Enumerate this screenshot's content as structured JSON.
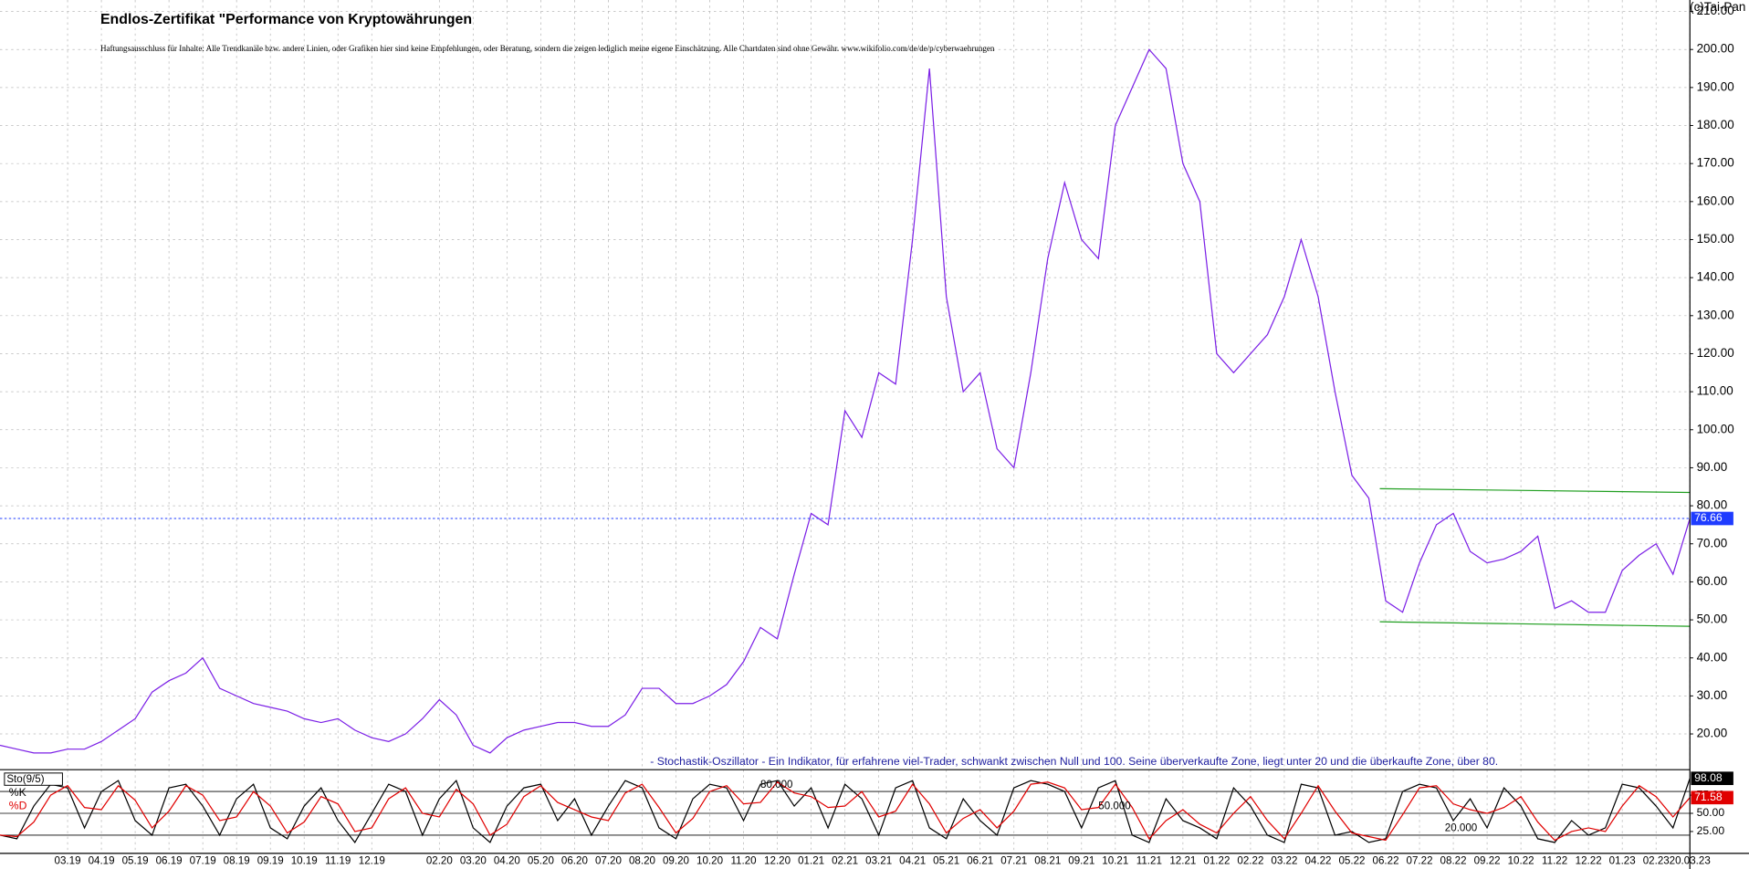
{
  "chart_data": [
    {
      "type": "line",
      "title": "Endlos-Zertifikat \"Performance von Kryptowährungen",
      "subtitle": "Haftungsausschluss für Inhalte: Alle Trendkanäle bzw. andere Linien, oder Grafiken hier sind keine Empfehlungen, oder Beratung, sondern die zeigen lediglich meine eigene Einschätzung. Alle Chartdaten sind ohne Gewähr. www.wikifolio.com/de/de/p/cyberwaehrungen",
      "source": "(c)Tai-Pan",
      "categories": [
        null,
        null,
        null,
        null,
        "03.19",
        null,
        "04.19",
        null,
        "05.19",
        null,
        "06.19",
        null,
        "07.19",
        null,
        "08.19",
        null,
        "09.19",
        null,
        "10.19",
        null,
        "11.19",
        null,
        "12.19",
        null,
        null,
        null,
        "02.20",
        null,
        "03.20",
        null,
        "04.20",
        null,
        "05.20",
        null,
        "06.20",
        null,
        "07.20",
        null,
        "08.20",
        null,
        "09.20",
        null,
        "10.20",
        null,
        "11.20",
        null,
        "12.20",
        null,
        "01.21",
        null,
        "02.21",
        null,
        "03.21",
        null,
        "04.21",
        null,
        "05.21",
        null,
        "06.21",
        null,
        "07.21",
        null,
        "08.21",
        null,
        "09.21",
        null,
        "10.21",
        null,
        "11.21",
        null,
        "12.21",
        null,
        "01.22",
        null,
        "02.22",
        null,
        "03.22",
        null,
        "04.22",
        null,
        "05.22",
        null,
        "06.22",
        null,
        "07.22",
        null,
        "08.22",
        null,
        "09.22",
        null,
        "10.22",
        null,
        "11.22",
        null,
        "12.22",
        null,
        "01.23",
        null,
        "02.23",
        null,
        "20.03.23"
      ],
      "values": [
        17,
        16,
        15,
        15,
        16,
        16,
        18,
        21,
        24,
        31,
        34,
        36,
        40,
        32,
        30,
        28,
        27,
        26,
        24,
        23,
        24,
        21,
        19,
        18,
        20,
        24,
        29,
        25,
        17,
        15,
        19,
        21,
        22,
        23,
        23,
        22,
        22,
        25,
        32,
        32,
        28,
        28,
        30,
        33,
        39,
        48,
        45,
        62,
        78,
        75,
        105,
        98,
        115,
        112,
        150,
        195,
        135,
        110,
        115,
        95,
        90,
        115,
        145,
        165,
        150,
        145,
        180,
        190,
        200,
        195,
        170,
        160,
        120,
        115,
        120,
        125,
        135,
        150,
        135,
        110,
        88,
        82,
        55,
        52,
        65,
        75,
        78,
        68,
        65,
        66,
        68,
        72,
        53,
        55,
        52,
        52,
        63,
        67,
        70,
        62,
        76.66
      ],
      "color": "#7b1fe6",
      "ylim": [
        15,
        213
      ],
      "yticks": [
        {
          "value": 20,
          "label": "20.00"
        },
        {
          "value": 30,
          "label": "30.00"
        },
        {
          "value": 40,
          "label": "40.00"
        },
        {
          "value": 50,
          "label": "50.00"
        },
        {
          "value": 60,
          "label": "60.00"
        },
        {
          "value": 70,
          "label": "70.00"
        },
        {
          "value": 80,
          "label": "80.00"
        },
        {
          "value": 90,
          "label": "90.00"
        },
        {
          "value": 100,
          "label": "100.00"
        },
        {
          "value": 110,
          "label": "110.00"
        },
        {
          "value": 120,
          "label": "120.00"
        },
        {
          "value": 130,
          "label": "130.00"
        },
        {
          "value": 140,
          "label": "140.00"
        },
        {
          "value": 150,
          "label": "150.00"
        },
        {
          "value": 160,
          "label": "160.00"
        },
        {
          "value": 170,
          "label": "170.00"
        },
        {
          "value": 180,
          "label": "180.00"
        },
        {
          "value": 190,
          "label": "190.00"
        },
        {
          "value": 200,
          "label": "200.00"
        },
        {
          "value": 210,
          "label": "210.00"
        }
      ],
      "grid": true,
      "last_value_color": "#1f3cff",
      "trend_lines": [
        {
          "color": "#1f9e1f",
          "values": [
            84.5,
            83.5
          ]
        },
        {
          "color": "#1f9e1f",
          "values": [
            49.5,
            48.3
          ]
        }
      ]
    },
    {
      "type": "stochastic",
      "title": "Sto(9/5)",
      "subtitle": "- Stochastik-Oszillator - Ein Indikator, für erfahrene viel-Trader, schwankt zwischen Null und 100. Seine überverkaufte Zone, liegt unter 20 und die überkaufte Zone, über 80.",
      "series": [
        {
          "name": "%K",
          "color": "#000000",
          "values": [
            20,
            15,
            60,
            90,
            85,
            30,
            80,
            95,
            40,
            20,
            85,
            90,
            60,
            20,
            70,
            90,
            30,
            15,
            60,
            85,
            40,
            10,
            50,
            90,
            80,
            20,
            70,
            95,
            30,
            10,
            60,
            85,
            90,
            40,
            70,
            20,
            60,
            95,
            85,
            30,
            15,
            70,
            90,
            85,
            40,
            90,
            95,
            60,
            85,
            30,
            90,
            70,
            20,
            85,
            95,
            30,
            15,
            70,
            40,
            20,
            85,
            95,
            90,
            80,
            30,
            85,
            95,
            20,
            10,
            70,
            40,
            30,
            15,
            85,
            60,
            20,
            10,
            90,
            85,
            20,
            25,
            10,
            15,
            80,
            90,
            85,
            40,
            70,
            30,
            85,
            60,
            15,
            10,
            40,
            20,
            30,
            90,
            85,
            60,
            30,
            98.08
          ]
        },
        {
          "name": "%D",
          "color": "#e00000",
          "values": [
            20,
            18,
            38,
            75,
            88,
            58,
            55,
            88,
            68,
            30,
            53,
            88,
            75,
            40,
            45,
            80,
            60,
            23,
            38,
            73,
            63,
            25,
            30,
            70,
            85,
            50,
            45,
            83,
            63,
            20,
            35,
            73,
            88,
            65,
            55,
            45,
            40,
            78,
            90,
            58,
            23,
            43,
            80,
            88,
            63,
            65,
            93,
            78,
            73,
            58,
            60,
            80,
            45,
            53,
            90,
            63,
            23,
            43,
            55,
            30,
            53,
            90,
            93,
            85,
            55,
            58,
            90,
            58,
            15,
            40,
            55,
            35,
            23,
            50,
            73,
            40,
            15,
            50,
            88,
            53,
            23,
            18,
            13,
            48,
            85,
            88,
            63,
            55,
            50,
            58,
            73,
            38,
            13,
            25,
            30,
            25,
            60,
            88,
            73,
            45,
            71.58
          ]
        }
      ],
      "levels": [
        {
          "value": 80,
          "label": "80.000"
        },
        {
          "value": 50,
          "label": "50.000"
        },
        {
          "value": 20,
          "label": "20.000"
        }
      ],
      "ylim": [
        -5,
        110
      ],
      "yticks": [
        {
          "value": 25,
          "label": "25.00"
        },
        {
          "value": 50,
          "label": "50.00"
        },
        {
          "value": 75,
          "label": "75.00"
        }
      ]
    }
  ]
}
